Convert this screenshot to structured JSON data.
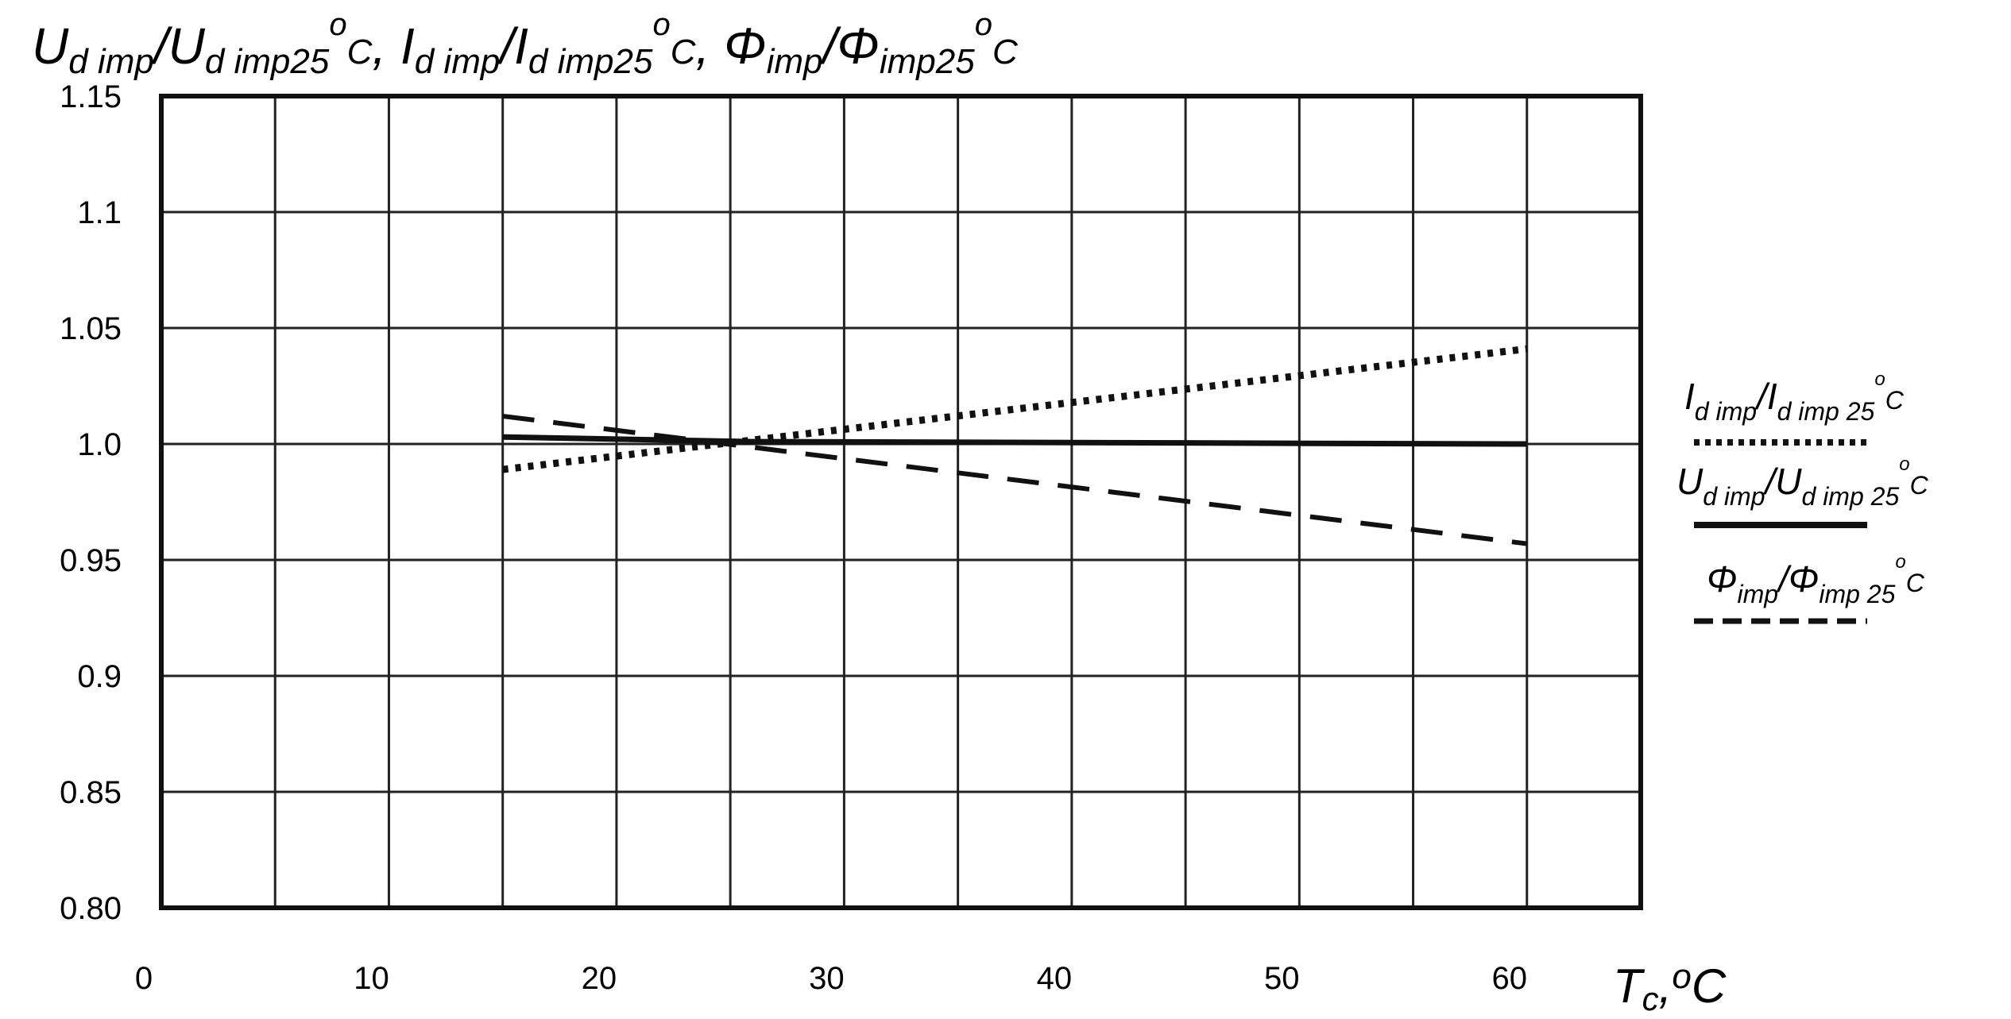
{
  "chart_data": {
    "type": "line",
    "title_parts": [
      {
        "main": "U",
        "sub": "d imp",
        "slash": "/",
        "main2": "U",
        "sub2": "d imp25",
        "sup": "o",
        "unit": "C",
        "sep": ", "
      },
      {
        "main": "I",
        "sub": "d imp",
        "slash": "/",
        "main2": "I",
        "sub2": "d imp25",
        "sup": "o",
        "unit": "C",
        "sep": ", "
      },
      {
        "main": "Φ",
        "sub": "imp",
        "slash": "/",
        "main2": "Φ",
        "sub2": "imp25",
        "sup": "o",
        "unit": "C",
        "sep": ""
      }
    ],
    "xlabel": {
      "main": "T",
      "sub": "c",
      "comma": ",",
      "sup": "o",
      "unit": "C"
    },
    "xlim": [
      0,
      65
    ],
    "ylim": [
      0.8,
      1.15
    ],
    "x_grid": [
      0,
      5,
      10,
      15,
      20,
      25,
      30,
      35,
      40,
      45,
      50,
      55,
      60,
      65
    ],
    "y_grid": [
      0.8,
      0.85,
      0.9,
      0.95,
      1.0,
      1.05,
      1.1,
      1.15
    ],
    "x_ticks": [
      {
        "value": 0,
        "label": "0"
      },
      {
        "value": 10,
        "label": "10"
      },
      {
        "value": 20,
        "label": "20"
      },
      {
        "value": 30,
        "label": "30"
      },
      {
        "value": 40,
        "label": "40"
      },
      {
        "value": 50,
        "label": "50"
      },
      {
        "value": 60,
        "label": "60"
      }
    ],
    "y_ticks": [
      {
        "value": 0.8,
        "label": "0.80"
      },
      {
        "value": 0.85,
        "label": "0.85"
      },
      {
        "value": 0.9,
        "label": "0.9"
      },
      {
        "value": 0.95,
        "label": "0.95"
      },
      {
        "value": 1.0,
        "label": "1.0"
      },
      {
        "value": 1.05,
        "label": "1.05"
      },
      {
        "value": 1.1,
        "label": "1.1"
      },
      {
        "value": 1.15,
        "label": "1.15"
      }
    ],
    "series": [
      {
        "name": "I d imp / I d imp 25°C",
        "style": "dotted",
        "legend": {
          "main": "I",
          "sub": "d imp",
          "slash": "/",
          "main2": "I",
          "sub2": "d imp 25",
          "sup": "o",
          "unit": "C"
        },
        "points": [
          [
            15,
            0.989
          ],
          [
            60,
            1.041
          ]
        ]
      },
      {
        "name": "U d imp / U d imp 25°C",
        "style": "solid",
        "legend": {
          "main": "U",
          "sub": "d imp",
          "slash": "/",
          "main2": "U",
          "sub2": "d imp 25",
          "sup": "o",
          "unit": "C"
        },
        "points": [
          [
            15,
            1.003
          ],
          [
            26,
            1.001
          ],
          [
            60,
            1.0
          ]
        ]
      },
      {
        "name": "Φ imp / Φ imp 25°C",
        "style": "dashed",
        "legend": {
          "main": "Φ",
          "sub": "imp",
          "slash": "/",
          "main2": "Φ",
          "sub2": "imp 25",
          "sup": "o",
          "unit": "C"
        },
        "points": [
          [
            15,
            1.012
          ],
          [
            60,
            0.957
          ]
        ]
      }
    ],
    "legend_position": "right"
  }
}
